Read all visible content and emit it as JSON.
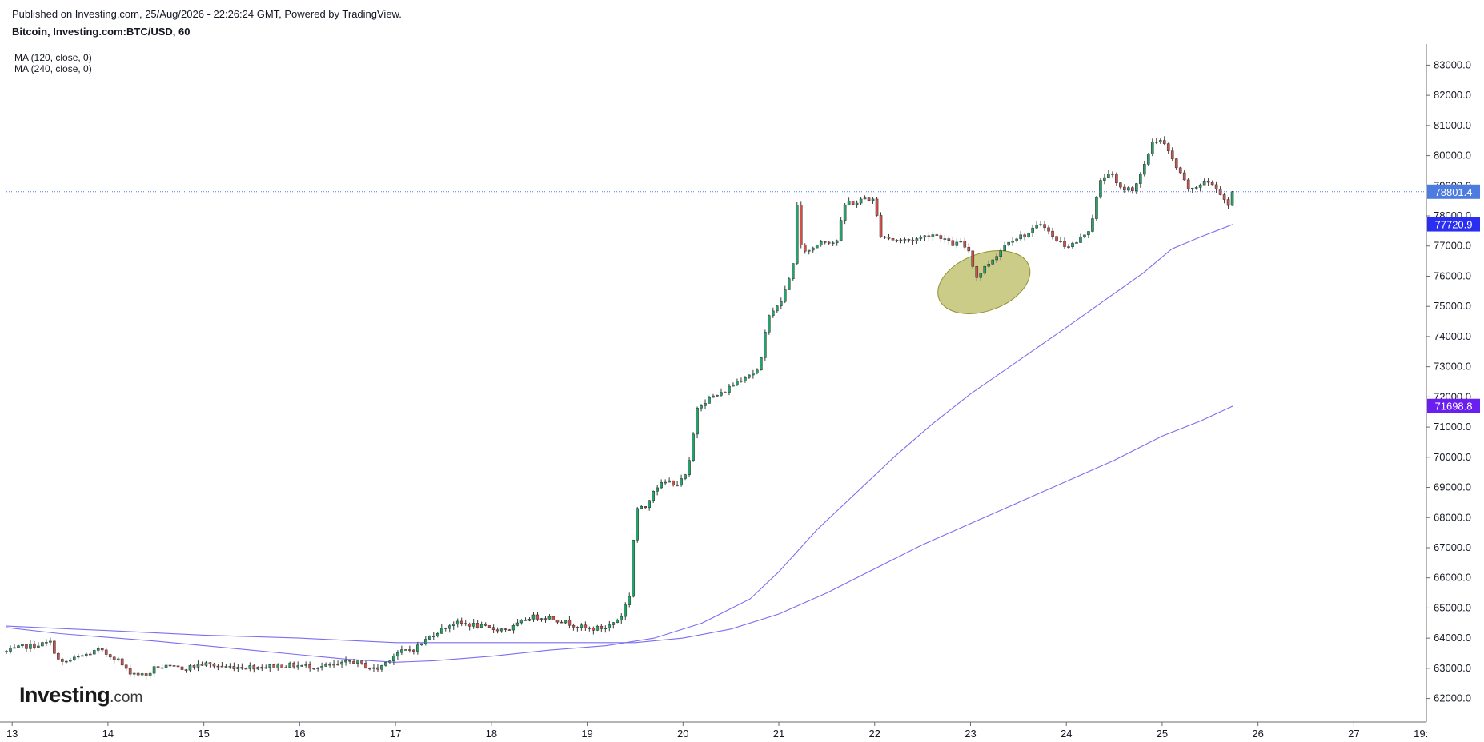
{
  "header": {
    "published": "Published on Investing.com, 25/Aug/2026 - 22:26:24 GMT, Powered by TradingView.",
    "symbol": "Bitcoin, Investing.com:BTC/USD, 60"
  },
  "indicators": {
    "ma_a": "MA (120, close, 0)",
    "ma_b": "MA (240, close, 0)"
  },
  "brand": {
    "name": "Investing",
    "suffix": ".com"
  },
  "chart_data": {
    "type": "candlestick",
    "title": "Bitcoin, Investing.com:BTC/USD, 60",
    "xlabel": "",
    "ylabel": "",
    "x_domain": [
      12.94,
      27.74
    ],
    "ylim": [
      61300,
      83700
    ],
    "y_ticks": [
      62000,
      63000,
      64000,
      65000,
      66000,
      67000,
      68000,
      69000,
      70000,
      71000,
      72000,
      73000,
      74000,
      75000,
      76000,
      77000,
      78000,
      79000,
      80000,
      81000,
      82000,
      83000
    ],
    "y_tick_labels": [
      "62000.0",
      "63000.0",
      "64000.0",
      "65000.0",
      "66000.0",
      "67000.0",
      "68000.0",
      "69000.0",
      "70000.0",
      "71000.0",
      "72000.0",
      "73000.0",
      "74000.0",
      "75000.0",
      "76000.0",
      "77000.0",
      "78000.0",
      "79000.0",
      "80000.0",
      "81000.0",
      "82000.0",
      "83000.0"
    ],
    "x_ticks": [
      13,
      14,
      15,
      16,
      17,
      18,
      19,
      20,
      21,
      22,
      23,
      24,
      25,
      26,
      27
    ],
    "x_tick_labels": [
      "13",
      "14",
      "15",
      "16",
      "17",
      "18",
      "19",
      "20",
      "21",
      "22",
      "23",
      "24",
      "25",
      "26",
      "27",
      "19:"
    ],
    "x_tick_19_pos": 27.7,
    "grid": false,
    "colors": {
      "up": "#26a269",
      "down": "#d1504a",
      "wick": "#3a3a3a",
      "ma": "#7b6ff0",
      "last_price_line": "#4c7ce0",
      "last_price_tag": "#4c7ce0",
      "ma_a_tag": "#2a2ef0",
      "ma_b_tag": "#6b1ef0",
      "annotation_fill": "#b5b85a",
      "axis": "#6b6b6b"
    },
    "price_tags": [
      {
        "label": "78801.4",
        "value": 78801.4,
        "color": "#4c7ce0"
      },
      {
        "label": "77720.9",
        "value": 77720.9,
        "color": "#2a2ef0"
      },
      {
        "label": "71698.8",
        "value": 71698.8,
        "color": "#6b1ef0"
      }
    ],
    "last_price": 78801.4,
    "anchors": [
      [
        12.94,
        63550
      ],
      [
        13.1,
        63700
      ],
      [
        13.4,
        63850
      ],
      [
        13.5,
        63150
      ],
      [
        13.9,
        63600
      ],
      [
        14.1,
        63300
      ],
      [
        14.2,
        62900
      ],
      [
        14.4,
        62750
      ],
      [
        14.5,
        63050
      ],
      [
        14.8,
        63000
      ],
      [
        15.0,
        63150
      ],
      [
        15.2,
        63050
      ],
      [
        15.4,
        63050
      ],
      [
        15.6,
        63050
      ],
      [
        15.9,
        63100
      ],
      [
        16.2,
        63050
      ],
      [
        16.4,
        63100
      ],
      [
        16.55,
        63250
      ],
      [
        16.7,
        63050
      ],
      [
        16.8,
        62950
      ],
      [
        16.9,
        63200
      ],
      [
        17.0,
        63500
      ],
      [
        17.2,
        63650
      ],
      [
        17.4,
        64150
      ],
      [
        17.6,
        64500
      ],
      [
        17.8,
        64450
      ],
      [
        18.0,
        64300
      ],
      [
        18.2,
        64300
      ],
      [
        18.4,
        64700
      ],
      [
        18.6,
        64700
      ],
      [
        18.8,
        64500
      ],
      [
        19.0,
        64300
      ],
      [
        19.2,
        64350
      ],
      [
        19.35,
        64700
      ],
      [
        19.45,
        65500
      ],
      [
        19.5,
        68300
      ],
      [
        19.6,
        68300
      ],
      [
        19.7,
        69000
      ],
      [
        19.85,
        69200
      ],
      [
        19.95,
        69100
      ],
      [
        20.05,
        69500
      ],
      [
        20.15,
        71700
      ],
      [
        20.3,
        72000
      ],
      [
        20.4,
        72100
      ],
      [
        20.55,
        72500
      ],
      [
        20.65,
        72700
      ],
      [
        20.8,
        72900
      ],
      [
        20.85,
        74000
      ],
      [
        20.9,
        74800
      ],
      [
        21.0,
        75000
      ],
      [
        21.1,
        75800
      ],
      [
        21.15,
        76500
      ],
      [
        21.17,
        79200
      ],
      [
        21.22,
        77000
      ],
      [
        21.3,
        76800
      ],
      [
        21.45,
        77200
      ],
      [
        21.6,
        77100
      ],
      [
        21.7,
        78500
      ],
      [
        21.8,
        78400
      ],
      [
        21.9,
        78600
      ],
      [
        22.0,
        78500
      ],
      [
        22.05,
        77400
      ],
      [
        22.2,
        77200
      ],
      [
        22.4,
        77200
      ],
      [
        22.6,
        77400
      ],
      [
        22.7,
        77300
      ],
      [
        22.8,
        77050
      ],
      [
        22.9,
        77100
      ],
      [
        23.0,
        76800
      ],
      [
        23.05,
        75900
      ],
      [
        23.15,
        76300
      ],
      [
        23.3,
        76800
      ],
      [
        23.4,
        77200
      ],
      [
        23.6,
        77400
      ],
      [
        23.75,
        77800
      ],
      [
        23.85,
        77300
      ],
      [
        24.0,
        77000
      ],
      [
        24.1,
        77100
      ],
      [
        24.25,
        77600
      ],
      [
        24.35,
        79100
      ],
      [
        24.45,
        79500
      ],
      [
        24.55,
        78900
      ],
      [
        24.7,
        78900
      ],
      [
        24.8,
        79500
      ],
      [
        24.9,
        80500
      ],
      [
        25.0,
        80500
      ],
      [
        25.1,
        79900
      ],
      [
        25.2,
        79300
      ],
      [
        25.3,
        78800
      ],
      [
        25.45,
        79200
      ],
      [
        25.6,
        78800
      ],
      [
        25.7,
        78300
      ],
      [
        25.74,
        78801
      ]
    ],
    "ma_120": [
      [
        12.94,
        64350
      ],
      [
        13.5,
        64150
      ],
      [
        14.5,
        63900
      ],
      [
        15.5,
        63600
      ],
      [
        16.5,
        63300
      ],
      [
        17.0,
        63200
      ],
      [
        17.4,
        63250
      ],
      [
        18.0,
        63400
      ],
      [
        18.6,
        63600
      ],
      [
        19.2,
        63750
      ],
      [
        19.7,
        64000
      ],
      [
        20.2,
        64500
      ],
      [
        20.7,
        65300
      ],
      [
        21.0,
        66200
      ],
      [
        21.4,
        67600
      ],
      [
        21.8,
        68800
      ],
      [
        22.2,
        70000
      ],
      [
        22.6,
        71100
      ],
      [
        23.0,
        72100
      ],
      [
        23.5,
        73200
      ],
      [
        24.0,
        74300
      ],
      [
        24.4,
        75200
      ],
      [
        24.8,
        76100
      ],
      [
        25.1,
        76900
      ],
      [
        25.4,
        77300
      ],
      [
        25.74,
        77720.9
      ]
    ],
    "ma_240": [
      [
        12.94,
        64400
      ],
      [
        14.0,
        64250
      ],
      [
        15.0,
        64100
      ],
      [
        16.0,
        64000
      ],
      [
        17.0,
        63850
      ],
      [
        18.0,
        63850
      ],
      [
        19.0,
        63850
      ],
      [
        19.5,
        63850
      ],
      [
        20.0,
        64000
      ],
      [
        20.5,
        64300
      ],
      [
        21.0,
        64800
      ],
      [
        21.5,
        65500
      ],
      [
        22.0,
        66300
      ],
      [
        22.5,
        67100
      ],
      [
        23.0,
        67800
      ],
      [
        23.5,
        68500
      ],
      [
        24.0,
        69200
      ],
      [
        24.5,
        69900
      ],
      [
        25.0,
        70700
      ],
      [
        25.4,
        71200
      ],
      [
        25.74,
        71698.8
      ]
    ],
    "annotation": {
      "shape": "ellipse",
      "cx": 23.14,
      "cy": 75800,
      "rx_days": 0.5,
      "ry_value": 950,
      "rotation_deg": -20
    }
  }
}
